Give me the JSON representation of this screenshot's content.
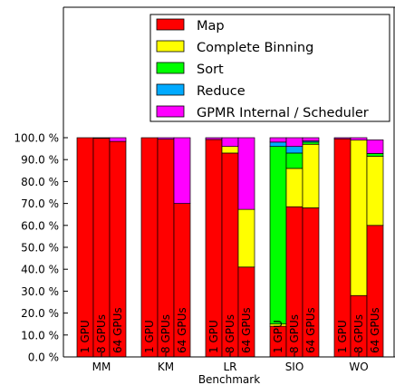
{
  "chart_data": {
    "type": "bar",
    "stacked": true,
    "xlabel": "Benchmark",
    "ylabel": "",
    "ylim": [
      0,
      100
    ],
    "yticks": [
      "0.0 %",
      "10.0 %",
      "20.0 %",
      "30.0 %",
      "40.0 %",
      "50.0 %",
      "60.0 %",
      "70.0 %",
      "80.0 %",
      "90.0 %",
      "100.0 %"
    ],
    "grid": false,
    "legend_position": "top-right",
    "groups": [
      "MM",
      "KM",
      "LR",
      "SIO",
      "WO"
    ],
    "bar_labels": [
      "1 GPU",
      "8 GPUs",
      "64 GPUs"
    ],
    "series": [
      {
        "name": "Map",
        "color": "#ff0000",
        "values": [
          [
            100,
            99.8,
            98.3
          ],
          [
            100,
            99.3,
            70
          ],
          [
            99.2,
            93,
            41
          ],
          [
            14,
            68.5,
            68
          ],
          [
            99.5,
            28,
            60
          ]
        ]
      },
      {
        "name": "Complete Binning",
        "color": "#ffff00",
        "values": [
          [
            0,
            0,
            0
          ],
          [
            0,
            0,
            0
          ],
          [
            0,
            3,
            26.3
          ],
          [
            1,
            17.5,
            29
          ],
          [
            0,
            70.9,
            31.5
          ]
        ]
      },
      {
        "name": "Sort",
        "color": "#00ff00",
        "values": [
          [
            0,
            0,
            0
          ],
          [
            0,
            0,
            0
          ],
          [
            0,
            0,
            0
          ],
          [
            81,
            7,
            1
          ],
          [
            0,
            0,
            1.3
          ]
        ]
      },
      {
        "name": "Reduce",
        "color": "#00aaff",
        "values": [
          [
            0,
            0,
            0
          ],
          [
            0,
            0,
            0
          ],
          [
            0,
            0,
            0
          ],
          [
            2,
            3,
            0.5
          ],
          [
            0,
            0,
            0
          ]
        ]
      },
      {
        "name": "GPMR Internal / Scheduler",
        "color": "#ff00ff",
        "values": [
          [
            0,
            0.2,
            1.7
          ],
          [
            0,
            0.7,
            30
          ],
          [
            0.8,
            4,
            32.7
          ],
          [
            2,
            4,
            1.5
          ],
          [
            0.5,
            1.1,
            6.2
          ]
        ]
      }
    ]
  }
}
